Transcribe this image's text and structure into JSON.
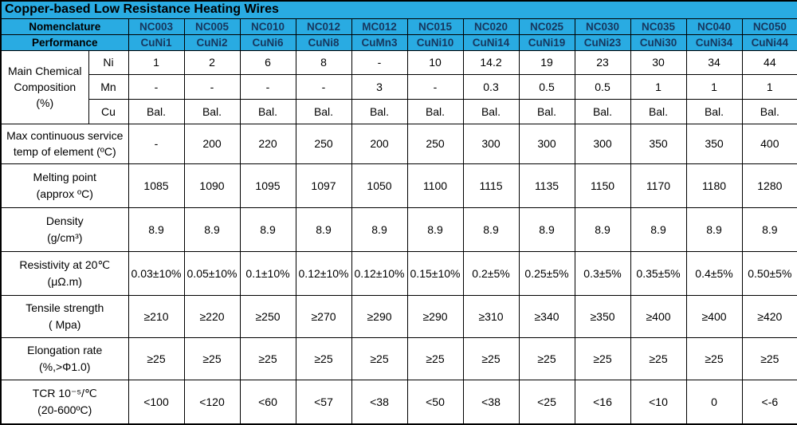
{
  "title": "Copper-based Low Resistance Heating Wires",
  "colors": {
    "header_bg": "#29ABE2",
    "header_value_text": "#17375E",
    "border": "#000000",
    "cell_bg": "#FFFFFF"
  },
  "header": {
    "nomenclature_label": "Nomenclature",
    "performance_label": "Performance",
    "nomenclature": [
      "NC003",
      "NC005",
      "NC010",
      "NC012",
      "MC012",
      "NC015",
      "NC020",
      "NC025",
      "NC030",
      "NC035",
      "NC040",
      "NC050"
    ],
    "performance": [
      "CuNi1",
      "CuNi2",
      "CuNi6",
      "CuNi8",
      "CuMn3",
      "CuNi10",
      "CuNi14",
      "CuNi19",
      "CuNi23",
      "CuNi30",
      "CuNi34",
      "CuNi44"
    ]
  },
  "composition": {
    "group_label": "Main Chemical\nComposition\n(%)",
    "rows": [
      {
        "element": "Ni",
        "values": [
          "1",
          "2",
          "6",
          "8",
          "-",
          "10",
          "14.2",
          "19",
          "23",
          "30",
          "34",
          "44"
        ]
      },
      {
        "element": "Mn",
        "values": [
          "-",
          "-",
          "-",
          "-",
          "3",
          "-",
          "0.3",
          "0.5",
          "0.5",
          "1",
          "1",
          "1"
        ]
      },
      {
        "element": "Cu",
        "values": [
          "Bal.",
          "Bal.",
          "Bal.",
          "Bal.",
          "Bal.",
          "Bal.",
          "Bal.",
          "Bal.",
          "Bal.",
          "Bal.",
          "Bal.",
          "Bal."
        ]
      }
    ]
  },
  "rows": [
    {
      "label": "Max continuous service\ntemp of element (ºC)",
      "values": [
        "-",
        "200",
        "220",
        "250",
        "200",
        "250",
        "300",
        "300",
        "300",
        "350",
        "350",
        "400"
      ]
    },
    {
      "label": "Melting point\n(approx ºC)",
      "values": [
        "1085",
        "1090",
        "1095",
        "1097",
        "1050",
        "1100",
        "1115",
        "1135",
        "1150",
        "1170",
        "1180",
        "1280"
      ]
    },
    {
      "label": "Density\n(g/cm³)",
      "values": [
        "8.9",
        "8.9",
        "8.9",
        "8.9",
        "8.9",
        "8.9",
        "8.9",
        "8.9",
        "8.9",
        "8.9",
        "8.9",
        "8.9"
      ]
    },
    {
      "label": "Resistivity at 20℃\n(μΩ.m)",
      "values": [
        "0.03±10%",
        "0.05±10%",
        "0.1±10%",
        "0.12±10%",
        "0.12±10%",
        "0.15±10%",
        "0.2±5%",
        "0.25±5%",
        "0.3±5%",
        "0.35±5%",
        "0.4±5%",
        "0.50±5%"
      ]
    },
    {
      "label": "Tensile strength\n( Mpa)",
      "values": [
        "≥210",
        "≥220",
        "≥250",
        "≥270",
        "≥290",
        "≥290",
        "≥310",
        "≥340",
        "≥350",
        "≥400",
        "≥400",
        "≥420"
      ]
    },
    {
      "label": "Elongation rate\n(%,>Φ1.0)",
      "values": [
        "≥25",
        "≥25",
        "≥25",
        "≥25",
        "≥25",
        "≥25",
        "≥25",
        "≥25",
        "≥25",
        "≥25",
        "≥25",
        "≥25"
      ]
    },
    {
      "label": "TCR 10⁻⁵/℃\n(20-600ºC)",
      "values": [
        "<100",
        "<120",
        "<60",
        "<57",
        "<38",
        "<50",
        "<38",
        "<25",
        "<16",
        "<10",
        "0",
        "<-6"
      ]
    }
  ]
}
